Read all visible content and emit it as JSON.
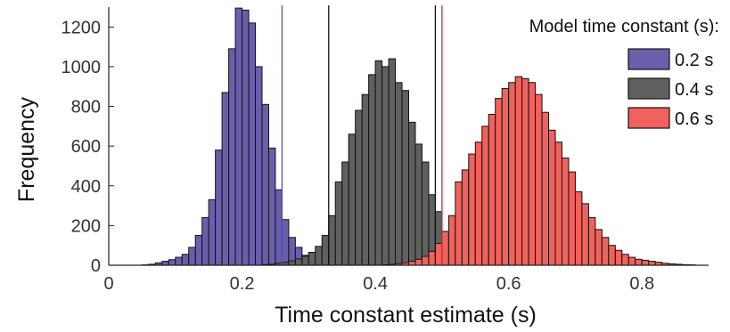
{
  "chart_data": {
    "type": "bar",
    "title": "",
    "xlabel": "Time constant estimate (s)",
    "ylabel": "Frequency",
    "xlim": [
      0,
      0.9
    ],
    "ylim": [
      0,
      1300
    ],
    "xticks": [
      0,
      0.2,
      0.4,
      0.6,
      0.8
    ],
    "xtick_labels": [
      "0",
      "0.2",
      "0.4",
      "0.6",
      "0.8"
    ],
    "yticks": [
      0,
      200,
      400,
      600,
      800,
      1000,
      1200
    ],
    "ytick_labels": [
      "0",
      "200",
      "400",
      "600",
      "800",
      "1000",
      "1200"
    ],
    "bin_width": 0.01,
    "legend_title": "Model time constant (s):",
    "legend_position": "top-right",
    "grid": false,
    "series": [
      {
        "name": "0.2 s",
        "color": "#6a5fab",
        "bin_starts": [
          0.05,
          0.06,
          0.07,
          0.08,
          0.09,
          0.1,
          0.11,
          0.12,
          0.13,
          0.14,
          0.15,
          0.16,
          0.17,
          0.18,
          0.19,
          0.2,
          0.21,
          0.22,
          0.23,
          0.24,
          0.25,
          0.26,
          0.27,
          0.28,
          0.29,
          0.3,
          0.31,
          0.32,
          0.33
        ],
        "values": [
          2,
          5,
          12,
          20,
          28,
          40,
          55,
          90,
          150,
          240,
          330,
          580,
          870,
          1090,
          1295,
          1285,
          1220,
          1000,
          810,
          590,
          380,
          230,
          140,
          90,
          50,
          30,
          20,
          10,
          5
        ]
      },
      {
        "name": "0.4 s",
        "color": "#5f615f",
        "bin_starts": [
          0.23,
          0.24,
          0.25,
          0.26,
          0.27,
          0.28,
          0.29,
          0.3,
          0.31,
          0.32,
          0.33,
          0.34,
          0.35,
          0.36,
          0.37,
          0.38,
          0.39,
          0.4,
          0.41,
          0.42,
          0.43,
          0.44,
          0.45,
          0.46,
          0.47,
          0.48,
          0.49,
          0.5,
          0.51,
          0.52,
          0.53,
          0.54,
          0.55,
          0.56,
          0.57,
          0.58
        ],
        "values": [
          3,
          5,
          10,
          15,
          22,
          32,
          45,
          65,
          95,
          150,
          250,
          420,
          520,
          660,
          780,
          860,
          960,
          1030,
          1000,
          1040,
          920,
          880,
          720,
          610,
          520,
          355,
          270,
          170,
          125,
          95,
          60,
          40,
          25,
          15,
          10,
          5
        ]
      },
      {
        "name": "0.6 s",
        "color": "#f0625b",
        "bin_starts": [
          0.41,
          0.42,
          0.43,
          0.44,
          0.45,
          0.46,
          0.47,
          0.48,
          0.49,
          0.5,
          0.51,
          0.52,
          0.53,
          0.54,
          0.55,
          0.56,
          0.57,
          0.58,
          0.59,
          0.6,
          0.61,
          0.62,
          0.63,
          0.64,
          0.65,
          0.66,
          0.67,
          0.68,
          0.69,
          0.7,
          0.71,
          0.72,
          0.73,
          0.74,
          0.75,
          0.76,
          0.77,
          0.78,
          0.79,
          0.8,
          0.81,
          0.82,
          0.83,
          0.84,
          0.85,
          0.86,
          0.87
        ],
        "values": [
          2,
          5,
          8,
          12,
          20,
          30,
          45,
          70,
          110,
          170,
          250,
          420,
          480,
          560,
          620,
          700,
          760,
          840,
          890,
          920,
          950,
          940,
          920,
          860,
          770,
          680,
          620,
          540,
          470,
          370,
          310,
          240,
          180,
          140,
          100,
          75,
          55,
          40,
          30,
          25,
          20,
          15,
          10,
          7,
          5,
          3,
          2
        ]
      }
    ],
    "vertical_lines": [
      {
        "x": 0.26,
        "color": "#4a56a6"
      },
      {
        "x": 0.33,
        "color": "#111111"
      },
      {
        "x": 0.49,
        "color": "#111111"
      },
      {
        "x": 0.5,
        "color": "#d03030"
      }
    ]
  }
}
